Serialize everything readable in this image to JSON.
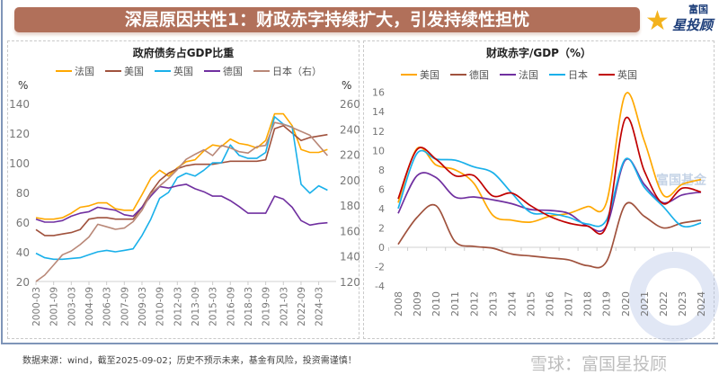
{
  "header": {
    "title": "深层原因共性1：财政赤字持续扩大，引发持续性担忧",
    "logo_text": [
      "富国",
      "星投顾"
    ]
  },
  "footer": {
    "source": "数据来源：wind，截至2025-09-02；历史不预示未来，基金有风险，投资需谨慎！",
    "watermark": "雪球：富国星投顾",
    "bg_watermark": "富国基金"
  },
  "chart_data": [
    {
      "type": "line",
      "title": "政府债务占GDP比重",
      "ylabel_left": "%",
      "ylabel_right": "%",
      "ylim_left": [
        20,
        140
      ],
      "ylim_right": [
        120,
        260
      ],
      "yticks_left": [
        20,
        40,
        60,
        80,
        100,
        120,
        140
      ],
      "yticks_right": [
        120,
        140,
        160,
        180,
        200,
        220,
        240,
        260
      ],
      "xtick_labels": [
        "2000-03",
        "2001-09",
        "2003-03",
        "2004-09",
        "2006-03",
        "2007-09",
        "2009-03",
        "2010-09",
        "2012-03",
        "2013-09",
        "2015-03",
        "2016-09",
        "2018-03",
        "2019-09",
        "2021-03",
        "2022-09",
        "2024-03"
      ],
      "x": [
        "2000-03",
        "2000-12",
        "2001-09",
        "2002-06",
        "2003-03",
        "2003-12",
        "2004-09",
        "2005-06",
        "2006-03",
        "2006-12",
        "2007-09",
        "2008-06",
        "2009-03",
        "2009-12",
        "2010-09",
        "2011-06",
        "2012-03",
        "2012-12",
        "2013-09",
        "2014-06",
        "2015-03",
        "2015-12",
        "2016-09",
        "2017-06",
        "2018-03",
        "2018-12",
        "2019-09",
        "2020-06",
        "2021-03",
        "2021-12",
        "2022-09",
        "2023-06",
        "2024-03",
        "2024-12"
      ],
      "legend_position": "top",
      "series": [
        {
          "name": "法国",
          "color": "#ffa800",
          "axis": "left",
          "values": [
            63,
            62,
            62,
            63,
            66,
            70,
            71,
            73,
            73,
            69,
            68,
            68,
            78.5,
            89.6,
            95,
            91,
            96.6,
            100.7,
            102,
            108,
            112,
            111,
            116,
            113,
            112,
            110,
            115,
            133,
            133,
            125,
            109,
            107,
            107,
            109
          ]
        },
        {
          "name": "美国",
          "color": "#a0523d",
          "axis": "left",
          "values": [
            55,
            51,
            51,
            52,
            53,
            55,
            62,
            63,
            63,
            62,
            62,
            62,
            70,
            80,
            88,
            93,
            96,
            98,
            99,
            99,
            99,
            100,
            101,
            101,
            101,
            101,
            102,
            123,
            125,
            120,
            115,
            117,
            118,
            119
          ]
        },
        {
          "name": "英国",
          "color": "#19b0ea",
          "axis": "left",
          "values": [
            39,
            36,
            35,
            35,
            35.5,
            36,
            38,
            40,
            41,
            40,
            41,
            42,
            51,
            62,
            76,
            80,
            90,
            93,
            91,
            95,
            100,
            100,
            112,
            105,
            103,
            103,
            107,
            131,
            126,
            124,
            85.5,
            79.5,
            84.5,
            81.5
          ]
        },
        {
          "name": "德国",
          "color": "#7030a0",
          "axis": "left",
          "values": [
            62,
            60,
            60,
            61,
            64,
            66,
            67,
            70,
            69,
            68,
            65,
            64,
            70,
            77.5,
            84,
            83,
            84.5,
            85.5,
            82.5,
            80.5,
            77.5,
            77.5,
            74.5,
            70.5,
            66,
            66,
            66,
            77.5,
            75.5,
            70,
            61,
            58,
            59,
            59.6
          ]
        },
        {
          "name": "日本（右）",
          "color": "#b98878",
          "axis": "right",
          "values": [
            120,
            125,
            133,
            141,
            144,
            149,
            155,
            165,
            163,
            161,
            162,
            167,
            176,
            189,
            195,
            201,
            208,
            216,
            220,
            223.5,
            219,
            227,
            225,
            222,
            221,
            226,
            227,
            245,
            243.5,
            241,
            238,
            235,
            227,
            219
          ]
        }
      ]
    },
    {
      "type": "line",
      "title": "财政赤字/GDP（%）",
      "ylim": [
        -4,
        16
      ],
      "yticks": [
        -4,
        -2,
        0,
        2,
        4,
        6,
        8,
        10,
        12,
        14,
        16
      ],
      "x": [
        "2008",
        "2009",
        "2010",
        "2011",
        "2012",
        "2013",
        "2014",
        "2015",
        "2016",
        "2017",
        "2018",
        "2019",
        "2020",
        "2021",
        "2022",
        "2023",
        "2024"
      ],
      "legend_position": "top",
      "series": [
        {
          "name": "美国",
          "color": "#ffa800",
          "values": [
            4.6,
            10.2,
            8.5,
            8.0,
            6.6,
            3.3,
            2.8,
            2.6,
            3.2,
            3.5,
            4.2,
            4.6,
            15.8,
            11,
            5.4,
            6.5,
            7.0
          ]
        },
        {
          "name": "德国",
          "color": "#a0523d",
          "values": [
            0.3,
            3.1,
            4.3,
            0.6,
            0.1,
            -0.1,
            -0.7,
            -0.9,
            -1.1,
            -1.3,
            -1.9,
            -1.5,
            4.4,
            3.2,
            2.0,
            2.5,
            2.8
          ]
        },
        {
          "name": "法国",
          "color": "#7030a0",
          "values": [
            3.5,
            7.4,
            7.2,
            5.2,
            5.2,
            4.9,
            4.5,
            3.9,
            3.8,
            3.5,
            2.2,
            2.2,
            9.0,
            6.5,
            4.6,
            5.4,
            5.7
          ]
        },
        {
          "name": "日本",
          "color": "#19b0ea",
          "values": [
            4.0,
            9.7,
            9.1,
            9.0,
            8.3,
            7.7,
            5.6,
            3.6,
            3.5,
            3.1,
            2.4,
            2.8,
            9.1,
            6.2,
            4.2,
            2.2,
            2.5
          ]
        },
        {
          "name": "英国",
          "color": "#c00000",
          "values": [
            5.0,
            10.1,
            9.1,
            7.4,
            7.4,
            5.3,
            5.6,
            4.3,
            3.2,
            2.5,
            2.2,
            2.2,
            13.3,
            7.9,
            4.5,
            6.1,
            5.7
          ]
        }
      ]
    }
  ]
}
